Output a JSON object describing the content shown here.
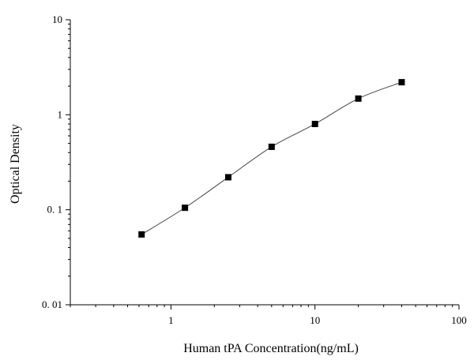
{
  "chart_data": {
    "type": "scatter",
    "title": "",
    "xlabel": "Human tPA Concentration(ng/mL)",
    "ylabel": "Optical Density",
    "xscale": "log",
    "yscale": "log",
    "xlim": [
      0.2,
      100
    ],
    "ylim": [
      0.01,
      10
    ],
    "x_ticks": [
      {
        "value": 1,
        "label": "1"
      },
      {
        "value": 10,
        "label": "10"
      },
      {
        "value": 100,
        "label": "100"
      }
    ],
    "y_ticks": [
      {
        "value": 0.01,
        "label": "0. 01"
      },
      {
        "value": 0.1,
        "label": "0. 1"
      },
      {
        "value": 1,
        "label": "1"
      },
      {
        "value": 10,
        "label": "10"
      }
    ],
    "grid": false,
    "legend": "none",
    "fit_line": true,
    "marker_color": "#000000",
    "line_color": "#444444",
    "x": [
      0.625,
      1.25,
      2.5,
      5,
      10,
      20,
      40
    ],
    "y": [
      0.055,
      0.105,
      0.22,
      0.46,
      0.8,
      1.48,
      2.2
    ]
  }
}
